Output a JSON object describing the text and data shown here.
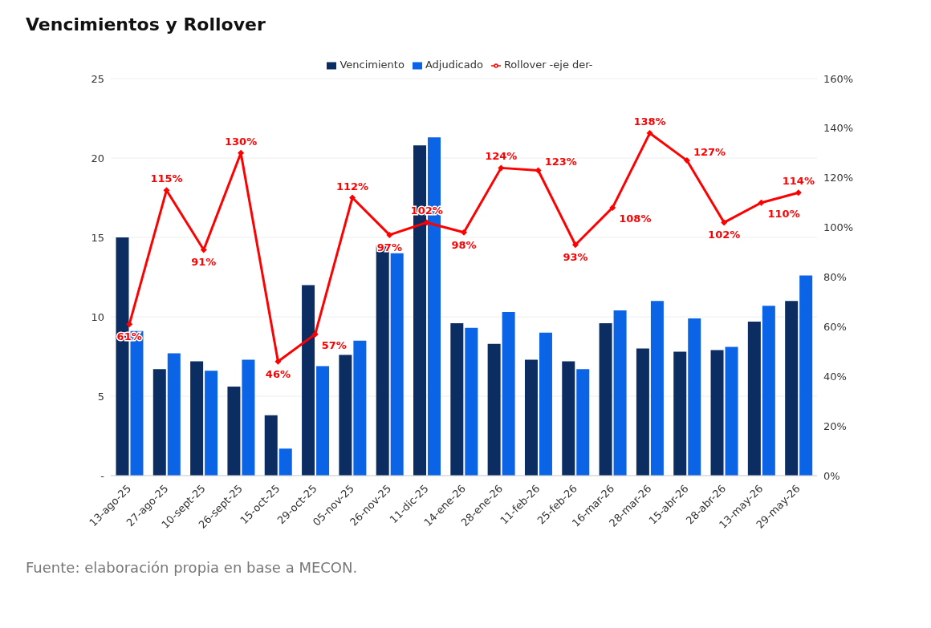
{
  "chart_data": {
    "type": "bar",
    "title": "Vencimientos y Rollover",
    "categories": [
      "13-ago-25",
      "27-ago-25",
      "10-sept-25",
      "26-sept-25",
      "15-oct-25",
      "29-oct-25",
      "05-nov-25",
      "26-nov-25",
      "11-dic-25",
      "14-ene-26",
      "28-ene-26",
      "11-feb-26",
      "25-feb-26",
      "16-mar-26",
      "28-mar-26",
      "15-abr-26",
      "28-abr-26",
      "13-may-26",
      "29-may-26"
    ],
    "series": [
      {
        "name": "Vencimiento",
        "color": "#0b2d62",
        "values": [
          15.0,
          6.7,
          7.2,
          5.6,
          3.8,
          12.0,
          7.6,
          14.5,
          20.8,
          9.6,
          8.3,
          7.3,
          7.2,
          9.6,
          8.0,
          7.8,
          7.9,
          9.7,
          11.0
        ]
      },
      {
        "name": "Adjudicado",
        "color": "#0b63e5",
        "values": [
          9.1,
          7.7,
          6.6,
          7.3,
          1.7,
          6.9,
          8.5,
          14.0,
          21.3,
          9.3,
          10.3,
          9.0,
          6.7,
          10.4,
          11.0,
          9.9,
          8.1,
          10.7,
          12.6
        ]
      },
      {
        "name": "Rollover -eje der-",
        "type": "line",
        "axis": "y2",
        "color": "#ff0000",
        "marker": "diamond",
        "values": [
          61,
          115,
          91,
          130,
          46,
          57,
          112,
          97,
          102,
          98,
          124,
          123,
          93,
          108,
          138,
          127,
          102,
          110,
          114
        ],
        "value_labels": [
          "61%",
          "115%",
          "91%",
          "130%",
          "46%",
          "57%",
          "112%",
          "97%",
          "102%",
          "98%",
          "124%",
          "123%",
          "93%",
          "108%",
          "138%",
          "127%",
          "102%",
          "110%",
          "114%"
        ]
      }
    ],
    "ylim": [
      0,
      25
    ],
    "yticks": [
      {
        "value": 0,
        "label": "-"
      },
      5,
      10,
      15,
      20,
      25
    ],
    "y2lim": [
      0,
      160
    ],
    "y2ticks": [
      {
        "value": 0,
        "label": "0%"
      },
      {
        "value": 20,
        "label": "20%"
      },
      {
        "value": 40,
        "label": "40%"
      },
      {
        "value": 60,
        "label": "60%"
      },
      {
        "value": 80,
        "label": "80%"
      },
      {
        "value": 100,
        "label": "100%"
      },
      {
        "value": 120,
        "label": "120%"
      },
      {
        "value": 140,
        "label": "140%"
      },
      {
        "value": 160,
        "label": "160%"
      }
    ],
    "grid": "y",
    "legend": "top",
    "annotations": [
      "Fuente: elaboración propia en base a MECON."
    ]
  }
}
